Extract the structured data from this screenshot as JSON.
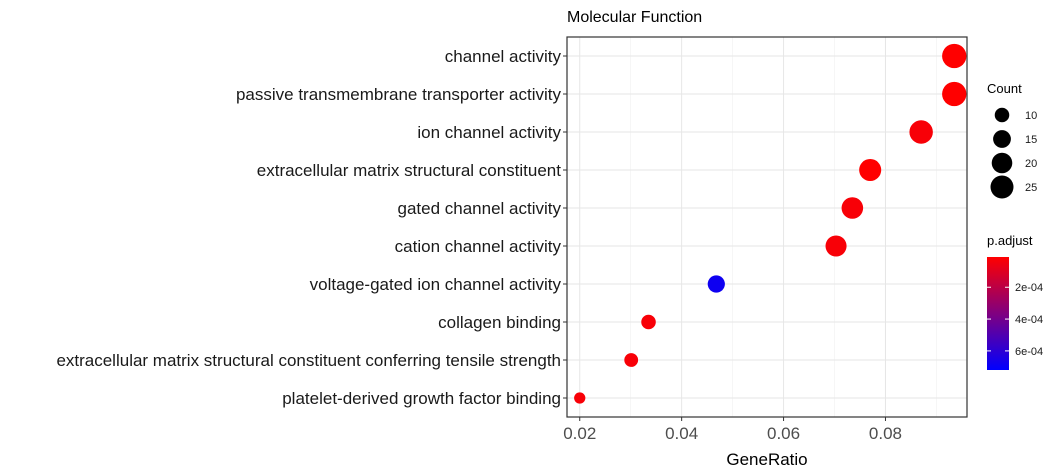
{
  "chart_data": {
    "type": "scatter",
    "title": "Molecular Function",
    "xlabel": "GeneRatio",
    "ylabel": "",
    "xlim": [
      0.0175,
      0.096
    ],
    "xticks": [
      0.02,
      0.04,
      0.06,
      0.08
    ],
    "xtick_labels": [
      "0.02",
      "0.04",
      "0.06",
      "0.08"
    ],
    "grid": true,
    "categories": [
      "channel activity",
      "passive transmembrane transporter activity",
      "ion channel activity",
      "extracellular matrix structural constituent",
      "gated channel activity",
      "cation channel activity",
      "voltage-gated ion channel activity",
      "collagen binding",
      "extracellular matrix structural constituent conferring tensile strength",
      "platelet-derived growth factor binding"
    ],
    "points": [
      {
        "category": "channel activity",
        "gene_ratio": 0.0935,
        "count": 28,
        "p_adjust": 1e-05
      },
      {
        "category": "passive transmembrane transporter activity",
        "gene_ratio": 0.0935,
        "count": 28,
        "p_adjust": 1e-05
      },
      {
        "category": "ion channel activity",
        "gene_ratio": 0.087,
        "count": 26,
        "p_adjust": 3e-05
      },
      {
        "category": "extracellular matrix structural constituent",
        "gene_ratio": 0.077,
        "count": 23,
        "p_adjust": 1e-05
      },
      {
        "category": "gated channel activity",
        "gene_ratio": 0.0735,
        "count": 22,
        "p_adjust": 3e-05
      },
      {
        "category": "cation channel activity",
        "gene_ratio": 0.0703,
        "count": 21,
        "p_adjust": 3e-05
      },
      {
        "category": "voltage-gated ion channel activity",
        "gene_ratio": 0.0468,
        "count": 14,
        "p_adjust": 0.00068
      },
      {
        "category": "collagen binding",
        "gene_ratio": 0.0335,
        "count": 10,
        "p_adjust": 3e-05
      },
      {
        "category": "extracellular matrix structural constituent conferring tensile strength",
        "gene_ratio": 0.0301,
        "count": 9,
        "p_adjust": 3e-05
      },
      {
        "category": "platelet-derived growth factor binding",
        "gene_ratio": 0.02,
        "count": 6,
        "p_adjust": 3e-05
      }
    ],
    "size_legend": {
      "title": "Count",
      "values": [
        10,
        15,
        20,
        25
      ],
      "labels": [
        "10",
        "15",
        "20",
        "25"
      ]
    },
    "color_legend": {
      "title": "p.adjust",
      "ticks": [
        0.0002,
        0.0004,
        0.0006
      ],
      "labels": [
        "2e-04",
        "4e-04",
        "6e-04"
      ],
      "range": [
        1e-05,
        0.00072
      ],
      "low_color": "#ff0000",
      "high_color": "#0000ff"
    },
    "legend_position": "right"
  }
}
